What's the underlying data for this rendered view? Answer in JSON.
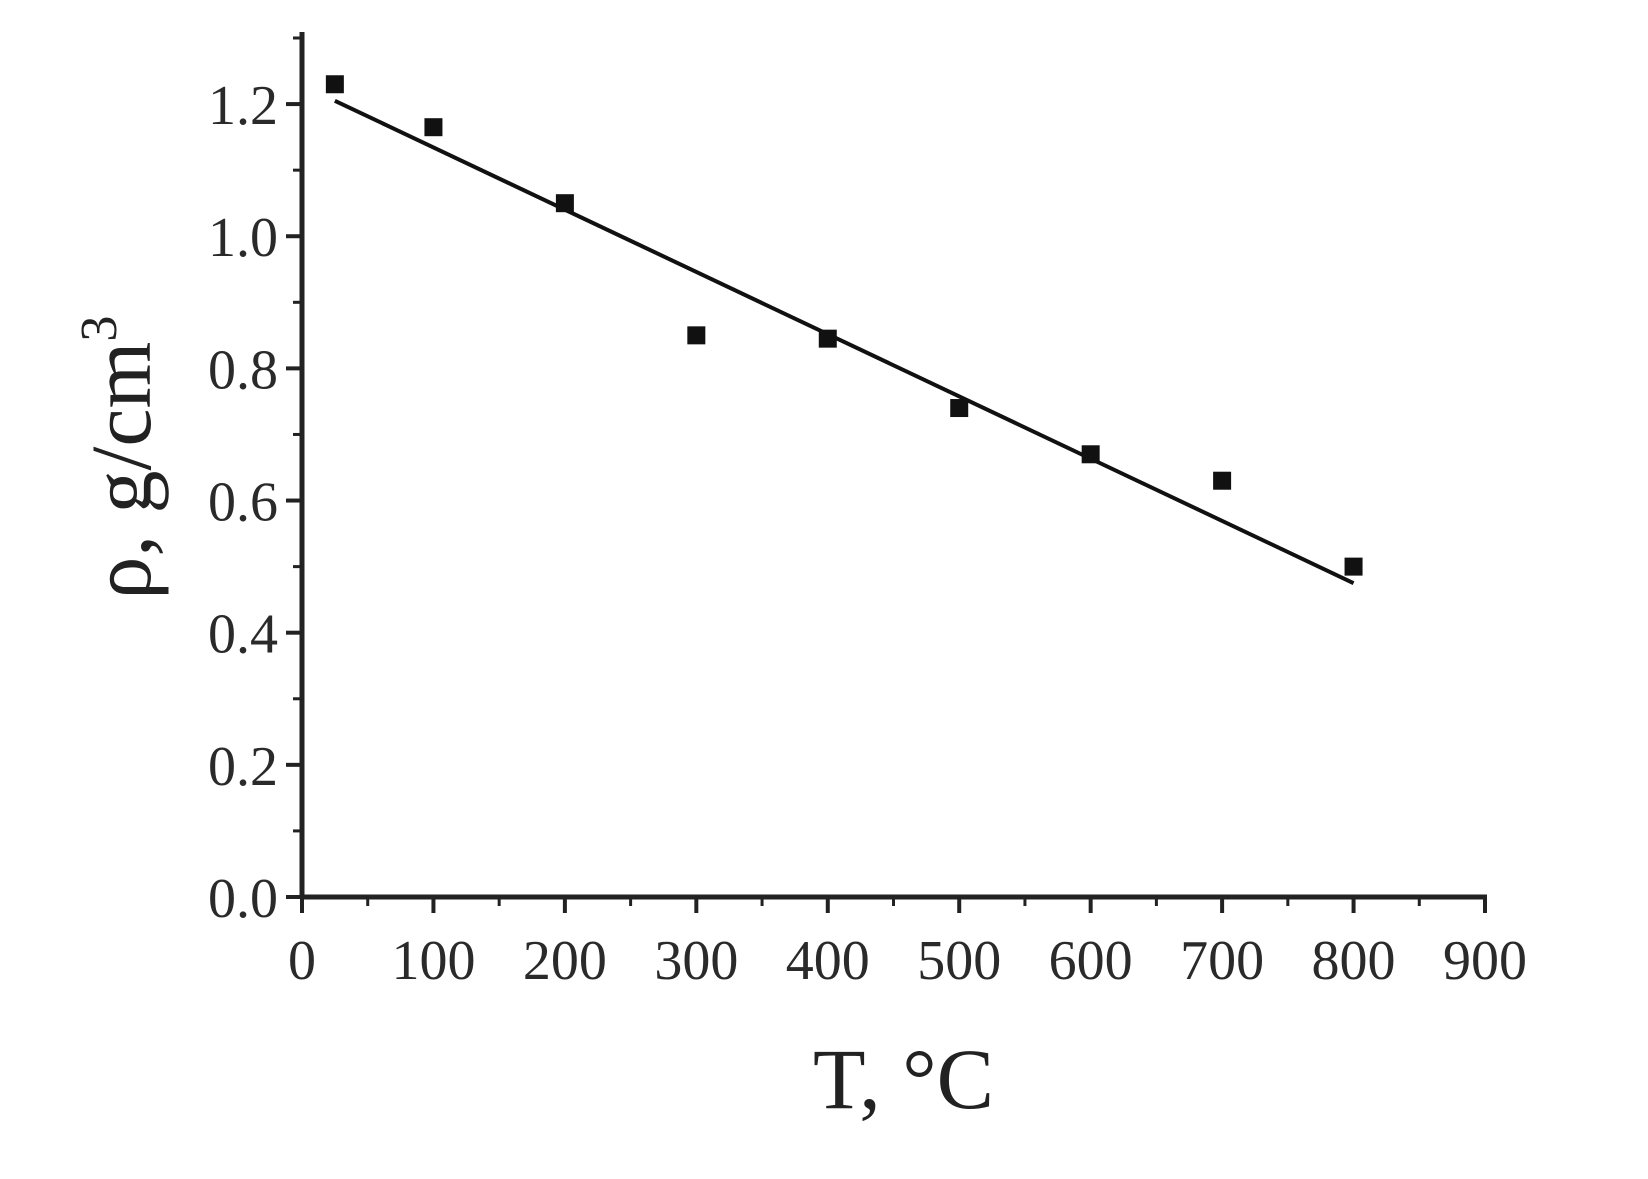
{
  "chart_data": {
    "type": "scatter",
    "xlabel": "T, °C",
    "ylabel": "ρ, g/cm",
    "ylabel_sup": "3",
    "xlim": [
      0,
      900
    ],
    "ylim": [
      0,
      1.3
    ],
    "xticks": [
      0,
      100,
      200,
      300,
      400,
      500,
      600,
      700,
      800,
      900
    ],
    "yticks": [
      0.0,
      0.2,
      0.4,
      0.6,
      0.8,
      1.0,
      1.2
    ],
    "xtick_labels": [
      "0",
      "100",
      "200",
      "300",
      "400",
      "500",
      "600",
      "700",
      "800",
      "900"
    ],
    "ytick_labels": [
      "0.0",
      "0.2",
      "0.4",
      "0.6",
      "0.8",
      "1.0",
      "1.2"
    ],
    "grid": false,
    "legend": "none",
    "series": [
      {
        "marker": "square",
        "x": [
          25,
          100,
          200,
          300,
          400,
          500,
          600,
          700,
          800
        ],
        "y": [
          1.23,
          1.165,
          1.05,
          0.85,
          0.845,
          0.74,
          0.67,
          0.63,
          0.5
        ]
      }
    ],
    "fit_line": {
      "x": [
        25,
        800
      ],
      "y": [
        1.205,
        0.475
      ]
    },
    "colors": {
      "marker": "#111111",
      "line": "#111111",
      "axis": "#222222"
    }
  }
}
